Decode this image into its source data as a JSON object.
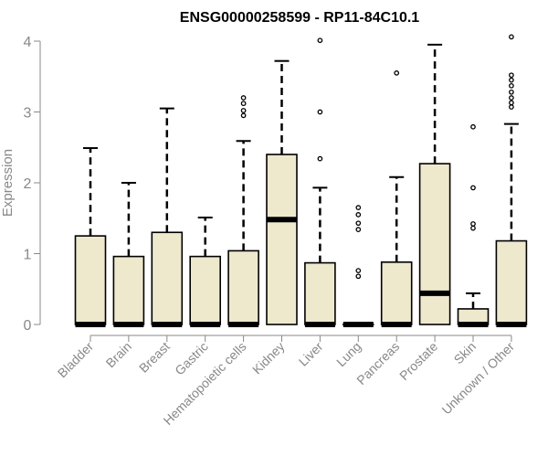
{
  "chart_data": {
    "type": "boxplot",
    "title": "ENSG00000258599 - RP11-84C10.1",
    "xlabel": "",
    "ylabel": "Expression",
    "ylim": [
      0,
      4.1
    ],
    "yticks": [
      0,
      1,
      2,
      3,
      4
    ],
    "box_color": "#EEE8CD",
    "categories": [
      "Bladder",
      "Brain",
      "Breast",
      "Gastric",
      "Hematopoietic cells",
      "Kidney",
      "Liver",
      "Lung",
      "Pancreas",
      "Prostate",
      "Skin",
      "Unknown / Other"
    ],
    "boxes": [
      {
        "q1": 0,
        "median": 0,
        "q3": 1.25,
        "wlow": 0,
        "whigh": 2.49,
        "outliers": []
      },
      {
        "q1": 0,
        "median": 0,
        "q3": 0.96,
        "wlow": 0,
        "whigh": 2.0,
        "outliers": []
      },
      {
        "q1": 0,
        "median": 0,
        "q3": 1.3,
        "wlow": 0,
        "whigh": 3.05,
        "outliers": []
      },
      {
        "q1": 0,
        "median": 0,
        "q3": 0.96,
        "wlow": 0,
        "whigh": 1.51,
        "outliers": []
      },
      {
        "q1": 0,
        "median": 0,
        "q3": 1.04,
        "wlow": 0,
        "whigh": 2.59,
        "outliers": [
          2.95,
          3.02,
          3.12,
          3.2
        ]
      },
      {
        "q1": 0,
        "median": 1.48,
        "q3": 2.4,
        "wlow": 0,
        "whigh": 3.72,
        "outliers": []
      },
      {
        "q1": 0,
        "median": 0,
        "q3": 0.87,
        "wlow": 0,
        "whigh": 1.93,
        "outliers": [
          2.34,
          3.0,
          4.01
        ]
      },
      {
        "q1": 0,
        "median": 0,
        "q3": 0,
        "wlow": 0,
        "whigh": 0,
        "outliers": [
          0.68,
          0.76,
          1.34,
          1.43,
          1.55,
          1.65
        ]
      },
      {
        "q1": 0,
        "median": 0,
        "q3": 0.88,
        "wlow": 0,
        "whigh": 2.08,
        "outliers": [
          3.55
        ]
      },
      {
        "q1": 0,
        "median": 0.44,
        "q3": 2.27,
        "wlow": 0,
        "whigh": 3.95,
        "outliers": []
      },
      {
        "q1": 0,
        "median": 0,
        "q3": 0.22,
        "wlow": 0,
        "whigh": 0.44,
        "outliers": [
          1.36,
          1.42,
          1.93,
          2.79
        ]
      },
      {
        "q1": 0,
        "median": 0,
        "q3": 1.18,
        "wlow": 0,
        "whigh": 2.83,
        "outliers": [
          3.07,
          3.13,
          3.2,
          3.28,
          3.37,
          3.45,
          3.52,
          4.06
        ]
      }
    ]
  }
}
